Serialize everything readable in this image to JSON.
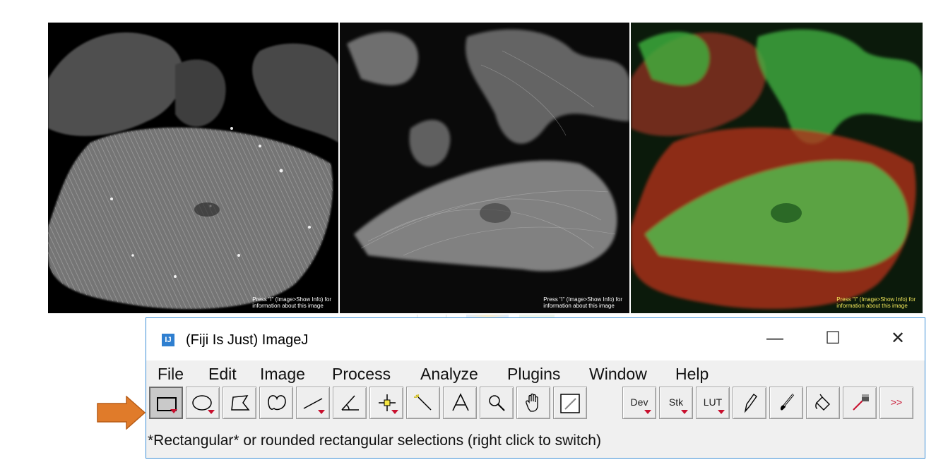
{
  "images": [
    {
      "caption_line1": "Press \"i\" (Image>Show Info) for",
      "caption_line2": "information about this image"
    },
    {
      "caption_line1": "Press \"i\" (Image>Show Info) for",
      "caption_line2": "information about this image"
    },
    {
      "caption_line1": "Press \"i\" (Image>Show Info) for",
      "caption_line2": "information about this image"
    }
  ],
  "window": {
    "icon_text": "IJ",
    "title": "(Fiji Is Just) ImageJ",
    "minimize_glyph": "—",
    "maximize_glyph": "☐",
    "close_glyph": "✕"
  },
  "menu": [
    "File",
    "Edit",
    "Image",
    "Process",
    "Analyze",
    "Plugins",
    "Window",
    "Help"
  ],
  "toolbar": {
    "tools": [
      {
        "icon": "rectangle-icon",
        "selected": true
      },
      {
        "icon": "oval-icon"
      },
      {
        "icon": "polygon-icon"
      },
      {
        "icon": "freehand-icon"
      },
      {
        "icon": "line-icon"
      },
      {
        "icon": "angle-icon"
      },
      {
        "icon": "point-icon"
      },
      {
        "icon": "wand-icon"
      },
      {
        "icon": "text-icon"
      },
      {
        "icon": "zoom-icon"
      },
      {
        "icon": "hand-icon"
      },
      {
        "icon": "color-picker-icon"
      },
      {
        "icon": "dev-icon",
        "label": "Dev"
      },
      {
        "icon": "stk-icon",
        "label": "Stk"
      },
      {
        "icon": "lut-icon",
        "label": "LUT"
      },
      {
        "icon": "pencil-icon"
      },
      {
        "icon": "paintbrush-icon"
      },
      {
        "icon": "flood-fill-icon"
      },
      {
        "icon": "dropper-icon"
      },
      {
        "icon": "more-tools-icon",
        "label": ">>"
      }
    ]
  },
  "status_text": "*Rectangular* or rounded rectangular selections (right click to switch)",
  "colors": {
    "window_border": "#3c8fd6",
    "arrow": "#e07b2a",
    "dropdown_triangle": "#c8102e",
    "background_gray": "#f0f0f0"
  }
}
